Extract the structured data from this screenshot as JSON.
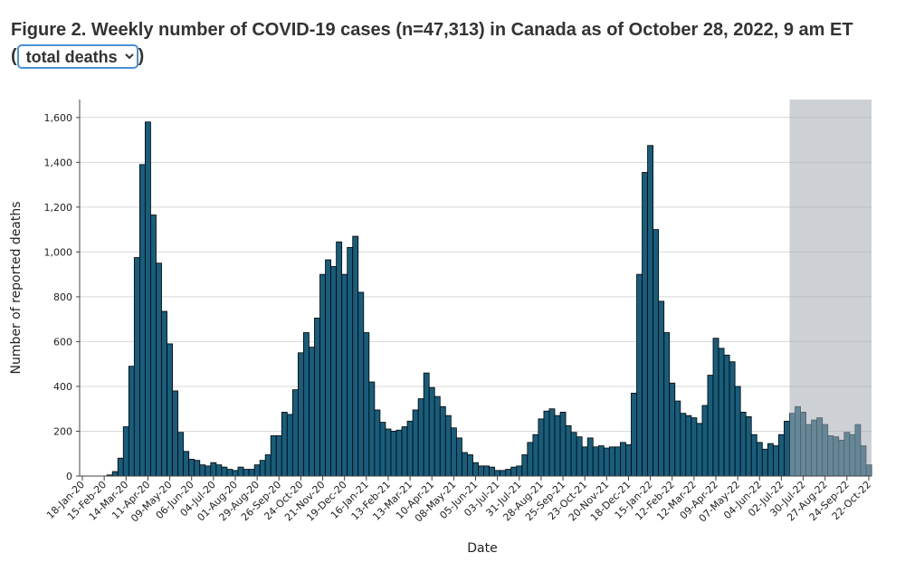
{
  "chart_data": {
    "type": "bar",
    "title": "Figure 2. Weekly number of COVID-19 cases (n=47,313) in Canada as of October 28, 2022, 9 am ET",
    "selector": {
      "prefix": "(",
      "value": "total deaths",
      "suffix": ")"
    },
    "xlabel": "Date",
    "ylabel": "Number of reported deaths",
    "color": "#175d7c",
    "grid": true,
    "ylim": [
      0,
      1680
    ],
    "yticks": [
      0,
      200,
      400,
      600,
      800,
      {
        "value": 1000,
        "label": "1,000"
      },
      {
        "value": 1200,
        "label": "1,200"
      },
      {
        "value": 1400,
        "label": "1,400"
      },
      {
        "value": 1600,
        "label": "1,600"
      }
    ],
    "categories": [
      "18-Jan-20",
      null,
      null,
      null,
      "15-Feb-20",
      null,
      null,
      null,
      "14-Mar-20",
      null,
      null,
      null,
      "11-Apr-20",
      null,
      null,
      null,
      "09-May-20",
      null,
      null,
      null,
      "06-Jun-20",
      null,
      null,
      null,
      "04-Jul-20",
      null,
      null,
      null,
      "01-Aug-20",
      null,
      null,
      null,
      "29-Aug-20",
      null,
      null,
      null,
      "26-Sep-20",
      null,
      null,
      null,
      "24-Oct-20",
      null,
      null,
      null,
      "21-Nov-20",
      null,
      null,
      null,
      "19-Dec-20",
      null,
      null,
      null,
      "16-Jan-21",
      null,
      null,
      null,
      "13-Feb-21",
      null,
      null,
      null,
      "13-Mar-21",
      null,
      null,
      null,
      "10-Apr-21",
      null,
      null,
      null,
      "08-May-21",
      null,
      null,
      null,
      "05-Jun-21",
      null,
      null,
      null,
      "03-Jul-21",
      null,
      null,
      null,
      "31-Jul-21",
      null,
      null,
      null,
      "28-Aug-21",
      null,
      null,
      null,
      "25-Sep-21",
      null,
      null,
      null,
      "23-Oct-21",
      null,
      null,
      null,
      "20-Nov-21",
      null,
      null,
      null,
      "18-Dec-21",
      null,
      null,
      null,
      "15-Jan-22",
      null,
      null,
      null,
      "12-Feb-22",
      null,
      null,
      null,
      "12-Mar-22",
      null,
      null,
      null,
      "09-Apr-22",
      null,
      null,
      null,
      "07-May-22",
      null,
      null,
      null,
      "04-Jun-22",
      null,
      null,
      null,
      "02-Jul-22",
      null,
      null,
      null,
      "30-Jul-22",
      null,
      null,
      null,
      "27-Aug-22",
      null,
      null,
      null,
      "24-Sep-22",
      null,
      null,
      null,
      "22-Oct-22"
    ],
    "values": [
      0,
      0,
      0,
      0,
      0,
      5,
      20,
      80,
      220,
      490,
      975,
      1390,
      1580,
      1165,
      950,
      735,
      590,
      380,
      195,
      110,
      75,
      70,
      50,
      45,
      60,
      50,
      40,
      30,
      25,
      40,
      30,
      30,
      50,
      70,
      95,
      180,
      180,
      285,
      275,
      385,
      550,
      640,
      575,
      705,
      900,
      965,
      935,
      1045,
      900,
      1020,
      1070,
      820,
      640,
      420,
      295,
      240,
      210,
      200,
      205,
      220,
      245,
      295,
      345,
      460,
      395,
      355,
      310,
      270,
      215,
      170,
      105,
      95,
      60,
      45,
      45,
      40,
      25,
      25,
      30,
      40,
      45,
      95,
      150,
      185,
      255,
      290,
      300,
      270,
      285,
      225,
      195,
      175,
      130,
      170,
      130,
      135,
      125,
      130,
      130,
      150,
      140,
      370,
      900,
      1355,
      1475,
      1100,
      780,
      640,
      415,
      335,
      280,
      270,
      260,
      235,
      315,
      450,
      615,
      570,
      540,
      510,
      400,
      285,
      265,
      185,
      150,
      120,
      145,
      135,
      185,
      245,
      280,
      310,
      285,
      230,
      250,
      260,
      230,
      180,
      175,
      160,
      195,
      185,
      230,
      135,
      50
    ]
  }
}
